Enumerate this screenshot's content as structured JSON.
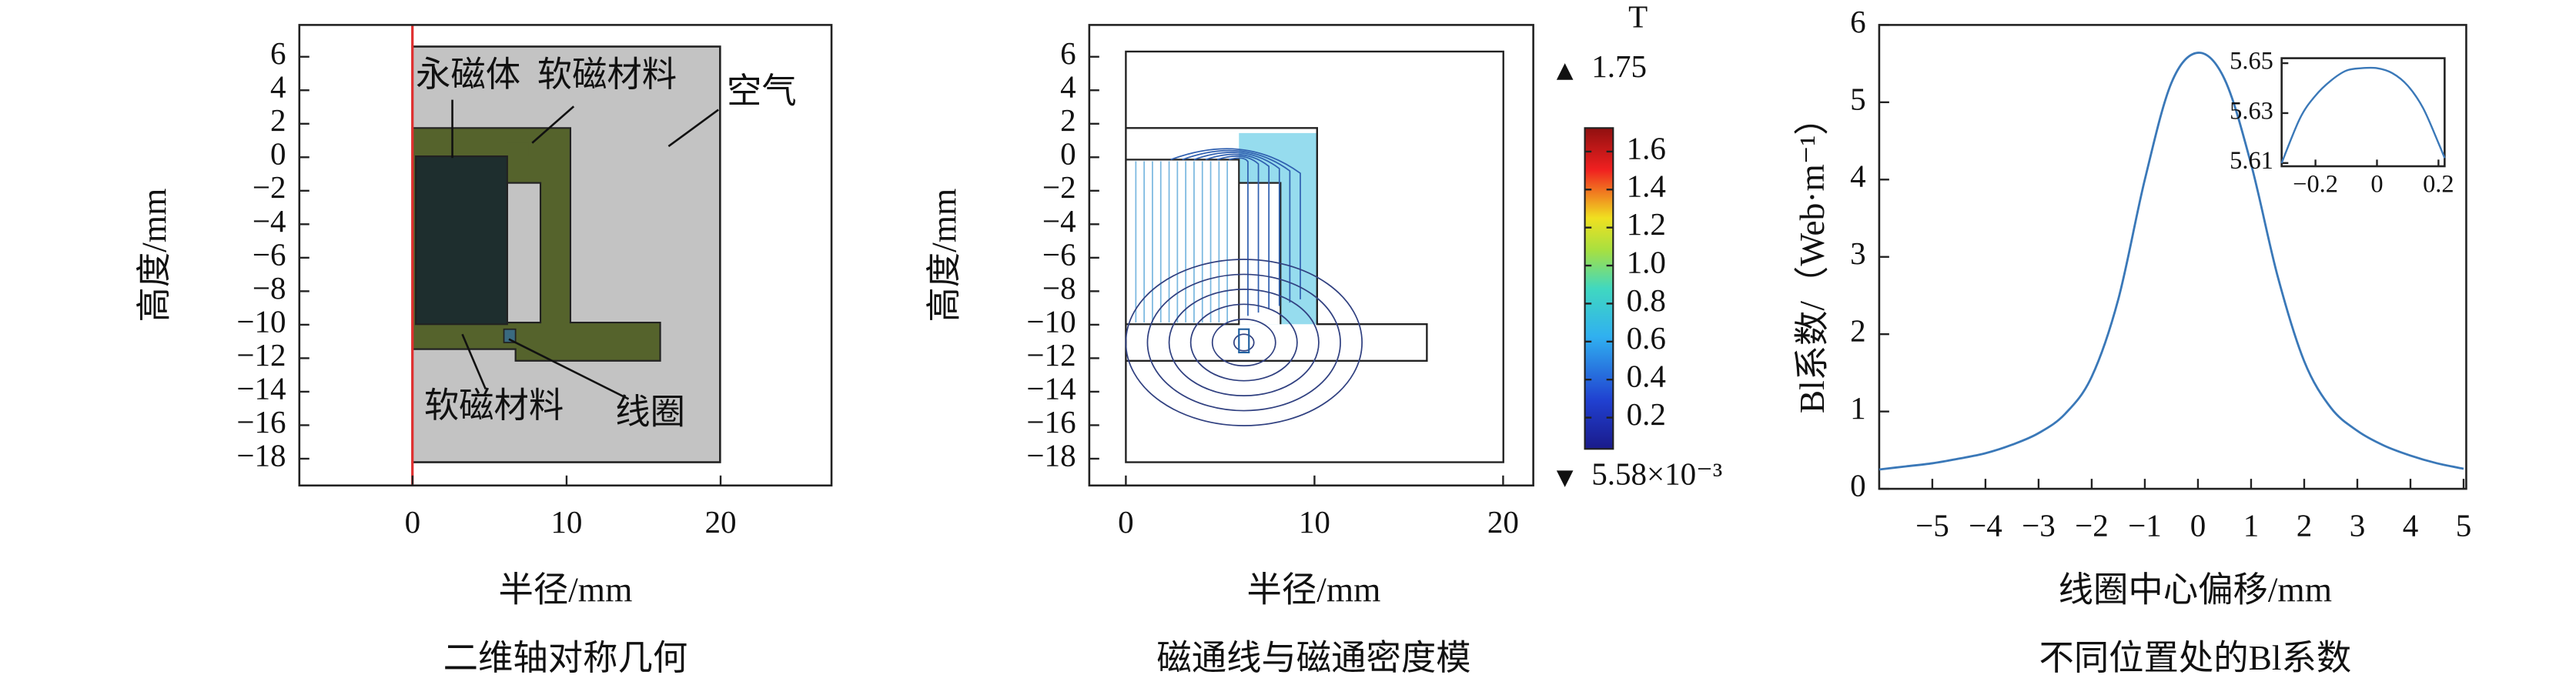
{
  "chart_data": [
    {
      "type": "geometry",
      "caption": "二维轴对称几何",
      "xlabel": "半径/mm",
      "ylabel": "高度/mm",
      "xlim": [
        -7.35,
        27.2
      ],
      "ylim": [
        -19.6,
        7.9
      ],
      "xticks": [
        0,
        10,
        20
      ],
      "yticks": [
        6,
        4,
        2,
        0,
        {
          "value": -2,
          "label": "−2"
        },
        {
          "value": -4,
          "label": "−4"
        },
        {
          "value": -6,
          "label": "−6"
        },
        {
          "value": -8,
          "label": "−8"
        },
        {
          "value": -10,
          "label": "−10"
        },
        {
          "value": -12,
          "label": "−12"
        },
        {
          "value": -14,
          "label": "−14"
        },
        {
          "value": -16,
          "label": "−16"
        },
        {
          "value": -18,
          "label": "−18"
        }
      ],
      "labels": [
        "永磁体",
        "软磁材料",
        "空气",
        "软磁材料",
        "线圈"
      ]
    },
    {
      "type": "contour",
      "caption": "磁通线与磁通密度模",
      "xlabel": "半径/mm",
      "ylabel": "高度/mm",
      "xlim": [
        -1.94,
        21.6
      ],
      "ylim": [
        -19.6,
        7.9
      ],
      "xticks": [
        0,
        10,
        20
      ],
      "yticks": [
        6,
        4,
        2,
        0,
        {
          "value": -2,
          "label": "−2"
        },
        {
          "value": -4,
          "label": "−4"
        },
        {
          "value": -6,
          "label": "−6"
        },
        {
          "value": -8,
          "label": "−8"
        },
        {
          "value": -10,
          "label": "−10"
        },
        {
          "value": -12,
          "label": "−12"
        },
        {
          "value": -14,
          "label": "−14"
        },
        {
          "value": -16,
          "label": "−16"
        },
        {
          "value": -18,
          "label": "−18"
        }
      ],
      "colorbar": {
        "title": "T",
        "clim": [
          {
            "value": 0.00558,
            "label": "5.58×10⁻³"
          },
          1.75
        ],
        "ticks": [
          0.2,
          0.4,
          0.6,
          0.8,
          {
            "value": 1,
            "label": "1.0"
          },
          1.2,
          1.4,
          1.6
        ]
      }
    },
    {
      "type": "line",
      "caption": "不同位置处的Bl系数",
      "xlabel": "线圈中心偏移/mm",
      "ylabel": "Bl系数/（Web·m⁻¹）",
      "color": "#3a78b8",
      "x": [
        -6,
        -5.5,
        -5,
        -4.5,
        -4,
        -3.5,
        -3,
        -2.5,
        -2,
        -1.5,
        -1,
        -0.5,
        0,
        0.5,
        1,
        1.5,
        2,
        2.5,
        3,
        3.5,
        4,
        4.5,
        5
      ],
      "values": [
        0.25,
        0.29,
        0.33,
        0.39,
        0.46,
        0.57,
        0.72,
        0.97,
        1.45,
        2.45,
        4.0,
        5.25,
        5.64,
        5.3,
        4.2,
        2.75,
        1.65,
        1.05,
        0.75,
        0.56,
        0.43,
        0.33,
        0.26
      ],
      "xlim": [
        -6,
        5.05
      ],
      "ylim": [
        0,
        6
      ],
      "xticks": [
        {
          "value": -5,
          "label": "−5"
        },
        {
          "value": -4,
          "label": "−4"
        },
        {
          "value": -3,
          "label": "−3"
        },
        {
          "value": -2,
          "label": "−2"
        },
        {
          "value": -1,
          "label": "−1"
        },
        0,
        1,
        2,
        3,
        4,
        5
      ],
      "yticks": [
        0,
        1,
        2,
        3,
        4,
        5,
        6
      ],
      "inset": {
        "x": [
          -0.31,
          -0.25,
          -0.2,
          -0.15,
          -0.1,
          -0.05,
          0,
          0.05,
          0.1,
          0.15,
          0.2,
          0.22
        ],
        "values": [
          5.61,
          5.628,
          5.637,
          5.643,
          5.647,
          5.648,
          5.648,
          5.646,
          5.641,
          5.632,
          5.618,
          5.612
        ],
        "xlim": [
          -0.31,
          0.22
        ],
        "ylim": [
          5.6087,
          5.652
        ],
        "xticks": [
          {
            "value": -0.2,
            "label": "−0.2"
          },
          0,
          0.2
        ],
        "yticks": [
          5.61,
          5.63,
          5.65
        ]
      }
    }
  ]
}
